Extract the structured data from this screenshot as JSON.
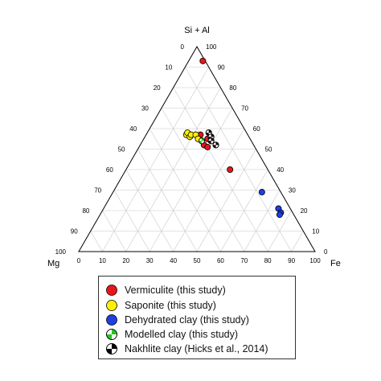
{
  "chart_data": {
    "type": "scatter",
    "subtype": "ternary",
    "axes": {
      "top": {
        "label": "Si + Al",
        "ticks": [
          0,
          10,
          20,
          30,
          40,
          50,
          60,
          70,
          80,
          90,
          100
        ]
      },
      "left": {
        "label": "Mg",
        "ticks": [
          0,
          10,
          20,
          30,
          40,
          50,
          60,
          70,
          80,
          90,
          100
        ]
      },
      "right": {
        "label": "Fe",
        "ticks": [
          0,
          10,
          20,
          30,
          40,
          50,
          60,
          70,
          80,
          90,
          100
        ]
      },
      "left_edge_ticks": [
        "0",
        "10",
        "20",
        "30",
        "40",
        "50",
        "60",
        "70",
        "80",
        "90",
        "100"
      ],
      "right_edge_ticks": [
        "100",
        "90",
        "80",
        "70",
        "60",
        "50",
        "40",
        "30",
        "20",
        "10",
        "0"
      ],
      "bottom_edge_ticks": [
        "0",
        "10",
        "20",
        "30",
        "40",
        "50",
        "60",
        "70",
        "80",
        "90",
        "100"
      ]
    },
    "grid": true,
    "grid_step": 10,
    "series": [
      {
        "name": "Vermiculite (this study)",
        "color": "#e8161b",
        "marker": "circle",
        "points": [
          {
            "sial": 93,
            "mg": 1,
            "fe": 6
          },
          {
            "sial": 57,
            "mg": 20,
            "fe": 23
          },
          {
            "sial": 55,
            "mg": 18,
            "fe": 27
          },
          {
            "sial": 52,
            "mg": 21,
            "fe": 27
          },
          {
            "sial": 51,
            "mg": 20,
            "fe": 29
          },
          {
            "sial": 40,
            "mg": 16,
            "fe": 44
          }
        ]
      },
      {
        "name": "Saponite (this study)",
        "color": "#fff200",
        "marker": "circle",
        "points": [
          {
            "sial": 57,
            "mg": 26,
            "fe": 17
          },
          {
            "sial": 58,
            "mg": 25,
            "fe": 17
          },
          {
            "sial": 56,
            "mg": 25,
            "fe": 19
          },
          {
            "sial": 57,
            "mg": 24,
            "fe": 19
          },
          {
            "sial": 57,
            "mg": 22,
            "fe": 21
          },
          {
            "sial": 55,
            "mg": 22,
            "fe": 23
          }
        ]
      },
      {
        "name": "Dehydrated clay (this study)",
        "color": "#1f3fe0",
        "marker": "circle",
        "points": [
          {
            "sial": 29,
            "mg": 8,
            "fe": 63
          },
          {
            "sial": 21,
            "mg": 5,
            "fe": 74
          },
          {
            "sial": 19,
            "mg": 5,
            "fe": 76
          },
          {
            "sial": 18,
            "mg": 6,
            "fe": 76
          }
        ]
      },
      {
        "name": "Modelled clay (this study)",
        "color": "#22c51e",
        "marker": "quartered",
        "points": [
          {
            "sial": 54,
            "mg": 21,
            "fe": 25
          }
        ]
      },
      {
        "name": "Nakhlite clay (Hicks et al., 2014)",
        "color": "#000000",
        "marker": "quartered",
        "points": [
          {
            "sial": 58,
            "mg": 16,
            "fe": 26
          },
          {
            "sial": 56,
            "mg": 16,
            "fe": 28
          },
          {
            "sial": 54,
            "mg": 17,
            "fe": 29
          },
          {
            "sial": 52,
            "mg": 16,
            "fe": 32
          }
        ]
      }
    ],
    "legend": {
      "position": "bottom",
      "entries": [
        "Vermiculite (this study)",
        "Saponite (this study)",
        "Dehydrated clay (this study)",
        "Modelled clay (this study)",
        "Nakhlite clay (Hicks et al., 2014)"
      ]
    }
  }
}
